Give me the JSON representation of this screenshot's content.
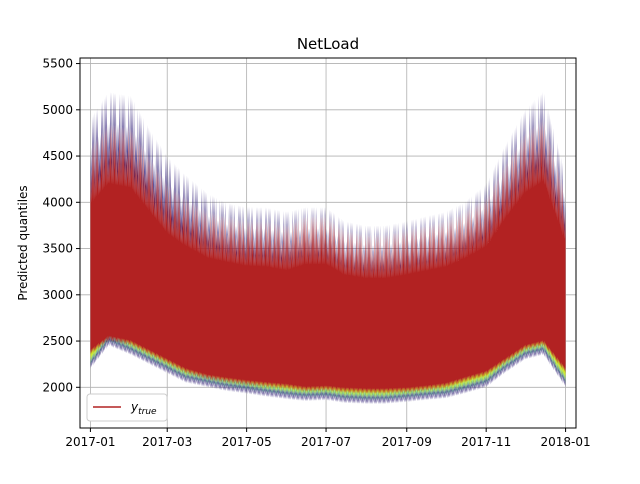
{
  "chart_data": {
    "type": "area",
    "title": "NetLoad",
    "ylabel": "Predicted quantiles",
    "xlabel": "",
    "x_start": "2017-01-01",
    "x_end": "2018-01-01",
    "xlim": [
      "2016-12-24",
      "2018-01-09"
    ],
    "ylim": [
      1560,
      5560
    ],
    "y_ticks": [
      2000,
      2500,
      3000,
      3500,
      4000,
      4500,
      5000,
      5500
    ],
    "x_ticks": [
      "2017-01",
      "2017-03",
      "2017-05",
      "2017-07",
      "2017-09",
      "2017-11",
      "2018-01"
    ],
    "x_tick_dates": [
      "2017-01-01",
      "2017-03-01",
      "2017-05-01",
      "2017-07-01",
      "2017-09-01",
      "2017-11-01",
      "2018-01-01"
    ],
    "grid": true,
    "legend": {
      "placement": "lower-left",
      "label": "y",
      "subscript": "true"
    },
    "series_colors": {
      "y_true": "#b22222",
      "upper_quantile": "#3b2a7f",
      "lower_quantile_outer": "#3b2a7f",
      "lower_quantile_mid": "#4fb38a",
      "lower_quantile_inner": "#cde830"
    },
    "envelope": {
      "dates": [
        "2017-01-01",
        "2017-01-15",
        "2017-02-01",
        "2017-02-15",
        "2017-03-01",
        "2017-03-15",
        "2017-04-01",
        "2017-04-15",
        "2017-05-01",
        "2017-05-15",
        "2017-06-01",
        "2017-06-15",
        "2017-07-01",
        "2017-07-15",
        "2017-08-01",
        "2017-08-15",
        "2017-09-01",
        "2017-09-15",
        "2017-10-01",
        "2017-10-15",
        "2017-11-01",
        "2017-11-15",
        "2017-12-01",
        "2017-12-15",
        "2018-01-01"
      ],
      "upper": [
        4900,
        5200,
        5150,
        4800,
        4500,
        4300,
        4100,
        4000,
        3950,
        3950,
        3900,
        3950,
        3950,
        3800,
        3750,
        3750,
        3800,
        3850,
        3900,
        4000,
        4200,
        4600,
        5000,
        5200,
        4300
      ],
      "true_max": [
        4600,
        4850,
        4800,
        4500,
        4200,
        4050,
        3900,
        3850,
        3800,
        3800,
        3750,
        3850,
        3850,
        3700,
        3650,
        3650,
        3700,
        3750,
        3800,
        3900,
        4050,
        4400,
        4750,
        4900,
        4100
      ],
      "true_min": [
        2350,
        2500,
        2450,
        2350,
        2250,
        2150,
        2080,
        2050,
        2020,
        2000,
        1980,
        1950,
        1960,
        1940,
        1930,
        1930,
        1940,
        1960,
        1990,
        2050,
        2120,
        2250,
        2400,
        2450,
        2150
      ],
      "lower": [
        2200,
        2450,
        2350,
        2250,
        2150,
        2050,
        2000,
        1960,
        1930,
        1900,
        1870,
        1850,
        1860,
        1830,
        1820,
        1820,
        1840,
        1860,
        1880,
        1930,
        2000,
        2150,
        2300,
        2350,
        2000
      ]
    }
  }
}
